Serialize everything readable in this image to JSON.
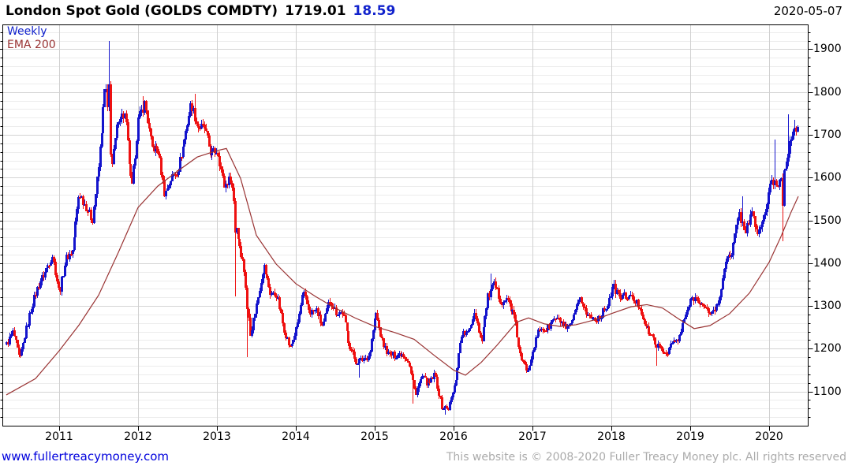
{
  "header": {
    "title": "London Spot Gold (GOLDS COMDTY)",
    "price": "1719.01",
    "change": "18.59",
    "date": "2020-05-07"
  },
  "legend": {
    "frequency": "Weekly",
    "ema": "EMA 200"
  },
  "footer": {
    "link": "www.fullertreacymoney.com",
    "copyright": "This website is © 2008-2020 Fuller Treacy Money plc. All rights reserved"
  },
  "colors": {
    "up_candle": "#1414CC",
    "down_candle": "#EE1111",
    "ema_line": "#993333",
    "grid_major": "#D4D4D4",
    "grid_minor": "#ECECEC",
    "grid_vertical": "#D0D0D0",
    "frame": "#000000",
    "title_text": "#000000",
    "change_blue": "#1122CC",
    "link_blue": "#0000DD",
    "copyright_gray": "#ABABAB"
  },
  "chart_data": {
    "type": "candlestick",
    "title": "London Spot Gold (GOLDS COMDTY)",
    "frequency": "Weekly",
    "last_price": 1719.01,
    "change": 18.59,
    "as_of_date": "2020-05-07",
    "grid": true,
    "ylabel_side": "right",
    "ylim": [
      1020,
      1958
    ],
    "y_major_ticks": [
      1100,
      1200,
      1300,
      1400,
      1500,
      1600,
      1700,
      1800,
      1900
    ],
    "y_minor_step": 20,
    "x_ticks": [
      2011,
      2012,
      2013,
      2014,
      2015,
      2016,
      2017,
      2018,
      2019,
      2020
    ],
    "x_domain": [
      2010.28,
      2020.49
    ],
    "data_start": 2010.33,
    "data_end": 2020.36,
    "price_monthly_close": {
      "start_month": "2010-05",
      "end_month": "2020-05",
      "values": [
        1210,
        1240,
        1170,
        1245,
        1310,
        1355,
        1385,
        1420,
        1330,
        1410,
        1430,
        1565,
        1535,
        1500,
        1630,
        1825,
        1625,
        1745,
        1745,
        1565,
        1735,
        1775,
        1670,
        1665,
        1560,
        1600,
        1620,
        1690,
        1775,
        1720,
        1715,
        1655,
        1665,
        1580,
        1600,
        1470,
        1390,
        1235,
        1310,
        1395,
        1330,
        1325,
        1250,
        1200,
        1245,
        1330,
        1285,
        1290,
        1250,
        1315,
        1285,
        1285,
        1210,
        1170,
        1175,
        1185,
        1285,
        1215,
        1185,
        1185,
        1190,
        1170,
        1095,
        1135,
        1115,
        1140,
        1065,
        1060,
        1115,
        1235,
        1235,
        1290,
        1215,
        1320,
        1350,
        1310,
        1315,
        1275,
        1175,
        1150,
        1210,
        1250,
        1245,
        1270,
        1265,
        1240,
        1270,
        1320,
        1280,
        1270,
        1275,
        1300,
        1345,
        1320,
        1325,
        1315,
        1300,
        1250,
        1225,
        1200,
        1190,
        1215,
        1220,
        1280,
        1320,
        1315,
        1290,
        1285,
        1305,
        1410,
        1415,
        1520,
        1475,
        1515,
        1465,
        1515,
        1590,
        1585,
        1620,
        1690,
        1719
      ]
    },
    "extremes": [
      {
        "month": "2011-09",
        "high": 1920
      },
      {
        "month": "2012-02",
        "high": 1790
      },
      {
        "month": "2012-10",
        "high": 1795
      },
      {
        "month": "2013-04",
        "low": 1322
      },
      {
        "month": "2013-06",
        "low": 1180
      },
      {
        "month": "2014-11",
        "low": 1132
      },
      {
        "month": "2015-07",
        "low": 1072
      },
      {
        "month": "2015-12",
        "low": 1046
      },
      {
        "month": "2016-07",
        "high": 1375
      },
      {
        "month": "2018-08",
        "low": 1160
      },
      {
        "month": "2019-09",
        "high": 1557
      },
      {
        "month": "2020-02",
        "high": 1689
      },
      {
        "month": "2020-03",
        "low": 1451
      },
      {
        "month": "2020-04",
        "high": 1748
      },
      {
        "month": "2020-05",
        "high": 1735
      }
    ],
    "ema_200": {
      "points": [
        [
          2010.33,
          1092
        ],
        [
          2010.7,
          1130
        ],
        [
          2011.0,
          1195
        ],
        [
          2011.25,
          1255
        ],
        [
          2011.5,
          1325
        ],
        [
          2011.75,
          1425
        ],
        [
          2012.0,
          1530
        ],
        [
          2012.25,
          1580
        ],
        [
          2012.5,
          1615
        ],
        [
          2012.75,
          1648
        ],
        [
          2013.0,
          1663
        ],
        [
          2013.12,
          1668
        ],
        [
          2013.3,
          1598
        ],
        [
          2013.5,
          1465
        ],
        [
          2013.75,
          1398
        ],
        [
          2014.0,
          1352
        ],
        [
          2014.25,
          1322
        ],
        [
          2014.5,
          1295
        ],
        [
          2014.75,
          1272
        ],
        [
          2015.0,
          1252
        ],
        [
          2015.25,
          1238
        ],
        [
          2015.5,
          1222
        ],
        [
          2015.75,
          1185
        ],
        [
          2016.0,
          1150
        ],
        [
          2016.15,
          1138
        ],
        [
          2016.35,
          1168
        ],
        [
          2016.55,
          1208
        ],
        [
          2016.8,
          1262
        ],
        [
          2016.95,
          1272
        ],
        [
          2017.15,
          1258
        ],
        [
          2017.35,
          1252
        ],
        [
          2017.55,
          1256
        ],
        [
          2017.8,
          1268
        ],
        [
          2018.0,
          1282
        ],
        [
          2018.25,
          1298
        ],
        [
          2018.45,
          1303
        ],
        [
          2018.65,
          1295
        ],
        [
          2018.85,
          1270
        ],
        [
          2019.05,
          1247
        ],
        [
          2019.25,
          1254
        ],
        [
          2019.5,
          1282
        ],
        [
          2019.75,
          1330
        ],
        [
          2020.0,
          1402
        ],
        [
          2020.15,
          1462
        ],
        [
          2020.28,
          1520
        ],
        [
          2020.37,
          1556
        ]
      ]
    }
  }
}
